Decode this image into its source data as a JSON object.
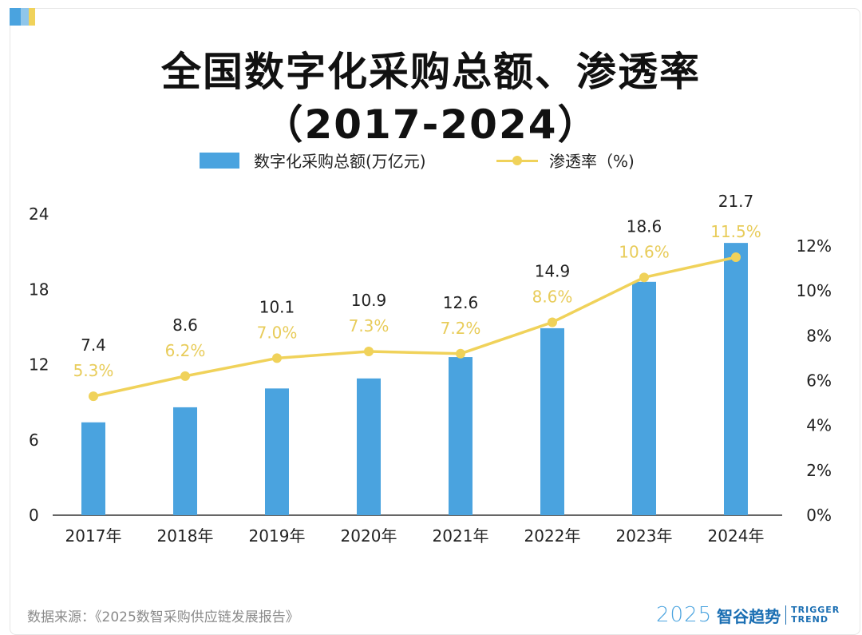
{
  "title": {
    "line1": "全国数字化采购总额、渗透率",
    "line2": "（2017-2024）"
  },
  "legend": {
    "bar_label": "数字化采购总额(万亿元)",
    "line_label": "渗透率（%)"
  },
  "colors": {
    "bar": "#4aa3df",
    "line": "#f0d25a",
    "rate_label": "#e8cc5a",
    "brand": "#1b6fb3"
  },
  "source_text": "数据来源：《2025数智采购供应链发展报告》",
  "brand": {
    "year": "2025",
    "name": "智谷趋势",
    "en_line1": "TRIGGER",
    "en_line2": "TREND"
  },
  "chart_data": {
    "type": "bar",
    "categories": [
      "2017年",
      "2018年",
      "2019年",
      "2020年",
      "2021年",
      "2022年",
      "2023年",
      "2024年"
    ],
    "series": [
      {
        "name": "数字化采购总额(万亿元)",
        "type": "bar",
        "axis": "left",
        "values": [
          7.4,
          8.6,
          10.1,
          10.9,
          12.6,
          14.9,
          18.6,
          21.7
        ],
        "labels": [
          "7.4",
          "8.6",
          "10.1",
          "10.9",
          "12.6",
          "14.9",
          "18.6",
          "21.7"
        ]
      },
      {
        "name": "渗透率（%)",
        "type": "line",
        "axis": "right",
        "values": [
          5.3,
          6.2,
          7.0,
          7.3,
          7.2,
          8.6,
          10.6,
          11.5
        ],
        "labels": [
          "5.3%",
          "6.2%",
          "7.0%",
          "7.3%",
          "7.2%",
          "8.6%",
          "10.6%",
          "11.5%"
        ]
      }
    ],
    "y_left": {
      "range": [
        0,
        24
      ],
      "ticks": [
        0,
        6,
        12,
        18,
        24
      ],
      "tick_labels": [
        "0",
        "6",
        "12",
        "18",
        "24"
      ]
    },
    "y_right": {
      "range": [
        0,
        12
      ],
      "ticks": [
        0,
        2,
        4,
        6,
        8,
        10,
        12
      ],
      "tick_labels": [
        "0%",
        "2%",
        "4%",
        "6%",
        "8%",
        "10%",
        "12%"
      ]
    },
    "grid": false,
    "legend_position": "top-center"
  }
}
